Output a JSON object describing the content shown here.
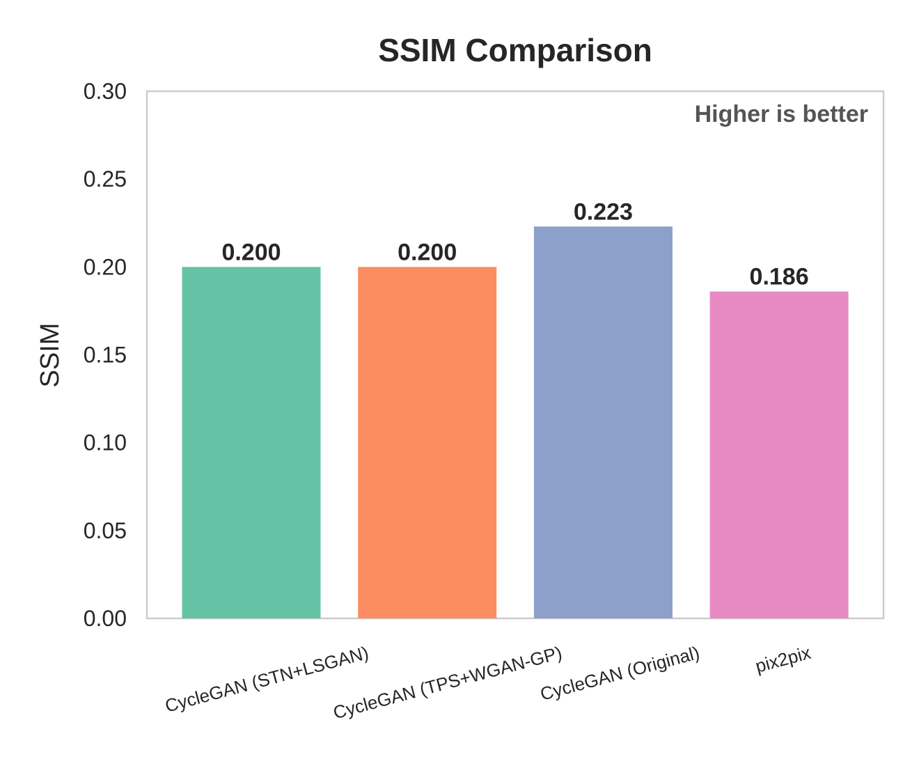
{
  "chart_data": {
    "type": "bar",
    "title": "SSIM Comparison",
    "xlabel": "",
    "ylabel": "SSIM",
    "categories": [
      "CycleGAN (STN+LSGAN)",
      "CycleGAN (TPS+WGAN-GP)",
      "CycleGAN (Original)",
      "pix2pix"
    ],
    "values": [
      0.2,
      0.2,
      0.223,
      0.186
    ],
    "value_labels": [
      "0.200",
      "0.200",
      "0.223",
      "0.186"
    ],
    "colors": [
      "#66c2a5",
      "#fc8d62",
      "#8da0cb",
      "#e78ac3"
    ],
    "ylim": [
      0,
      0.3
    ],
    "yticks": [
      "0.00",
      "0.05",
      "0.10",
      "0.15",
      "0.20",
      "0.25",
      "0.30"
    ],
    "annotation": "Higher is better",
    "grid": false,
    "legend": "none"
  }
}
